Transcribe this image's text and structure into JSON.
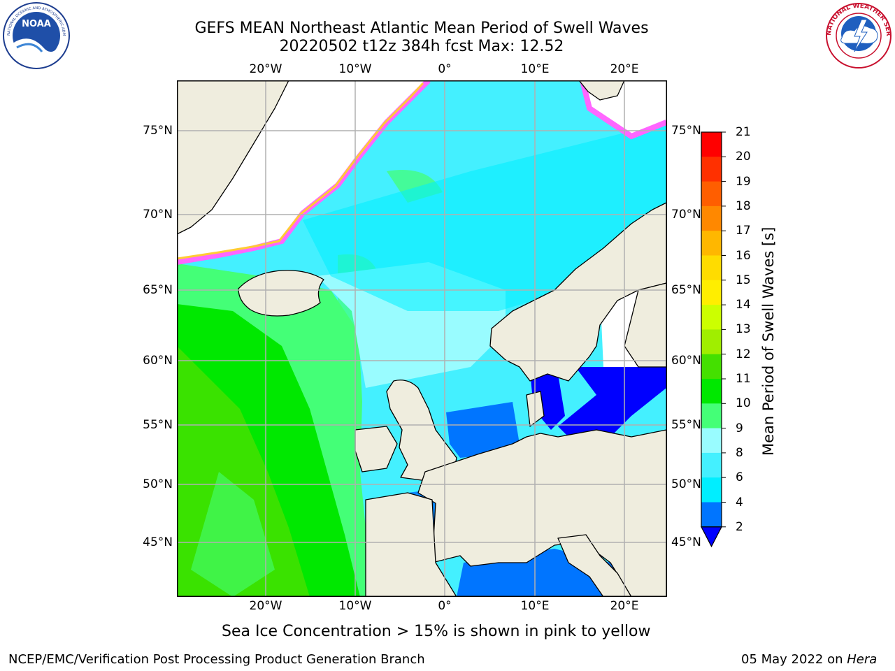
{
  "title": {
    "line1": "GEFS MEAN Northeast Atlantic Mean Period of Swell Waves",
    "line2": "20220502 t12z 384h fcst   Max: 12.52"
  },
  "logos": {
    "left_icon": "noaa-logo",
    "left_text": "NOAA",
    "left_ring_text": "NATIONAL OCEANIC AND ATMOSPHERIC ADMINISTRATION · U.S. DEPARTMENT OF COMMERCE",
    "right_icon": "nws-logo",
    "right_ring_text": "NATIONAL WEATHER SERVICE"
  },
  "map": {
    "lon_ticks": [
      "20°W",
      "10°W",
      "0°",
      "10°E",
      "20°E"
    ],
    "lat_ticks": [
      "75°N",
      "70°N",
      "65°N",
      "60°N",
      "55°N",
      "50°N",
      "45°N"
    ],
    "land_color": "#efedde",
    "coast_color": "#000000",
    "grid_color": "#b0b0b0"
  },
  "colorbar": {
    "label": "Mean Period of Swell Waves [s]",
    "ticks": [
      "2",
      "4",
      "6",
      "8",
      "9",
      "10",
      "11",
      "12",
      "13",
      "14",
      "15",
      "16",
      "17",
      "18",
      "19",
      "20",
      "21"
    ],
    "colors": [
      "#0000ff",
      "#0075ff",
      "#00eeff",
      "#44f0ff",
      "#99fcff",
      "#44ff77",
      "#00e800",
      "#44e000",
      "#a0ee00",
      "#ccff00",
      "#ffee00",
      "#ffdc00",
      "#ffb700",
      "#ff8800",
      "#ff5e00",
      "#ff3000",
      "#ff0000"
    ]
  },
  "note": "Sea Ice Concentration > 15% is shown in pink to yellow",
  "footer": {
    "left": "NCEP/EMC/Verification Post Processing Product Generation Branch",
    "right_date": "05 May 2022 on",
    "right_host": "Hera"
  }
}
